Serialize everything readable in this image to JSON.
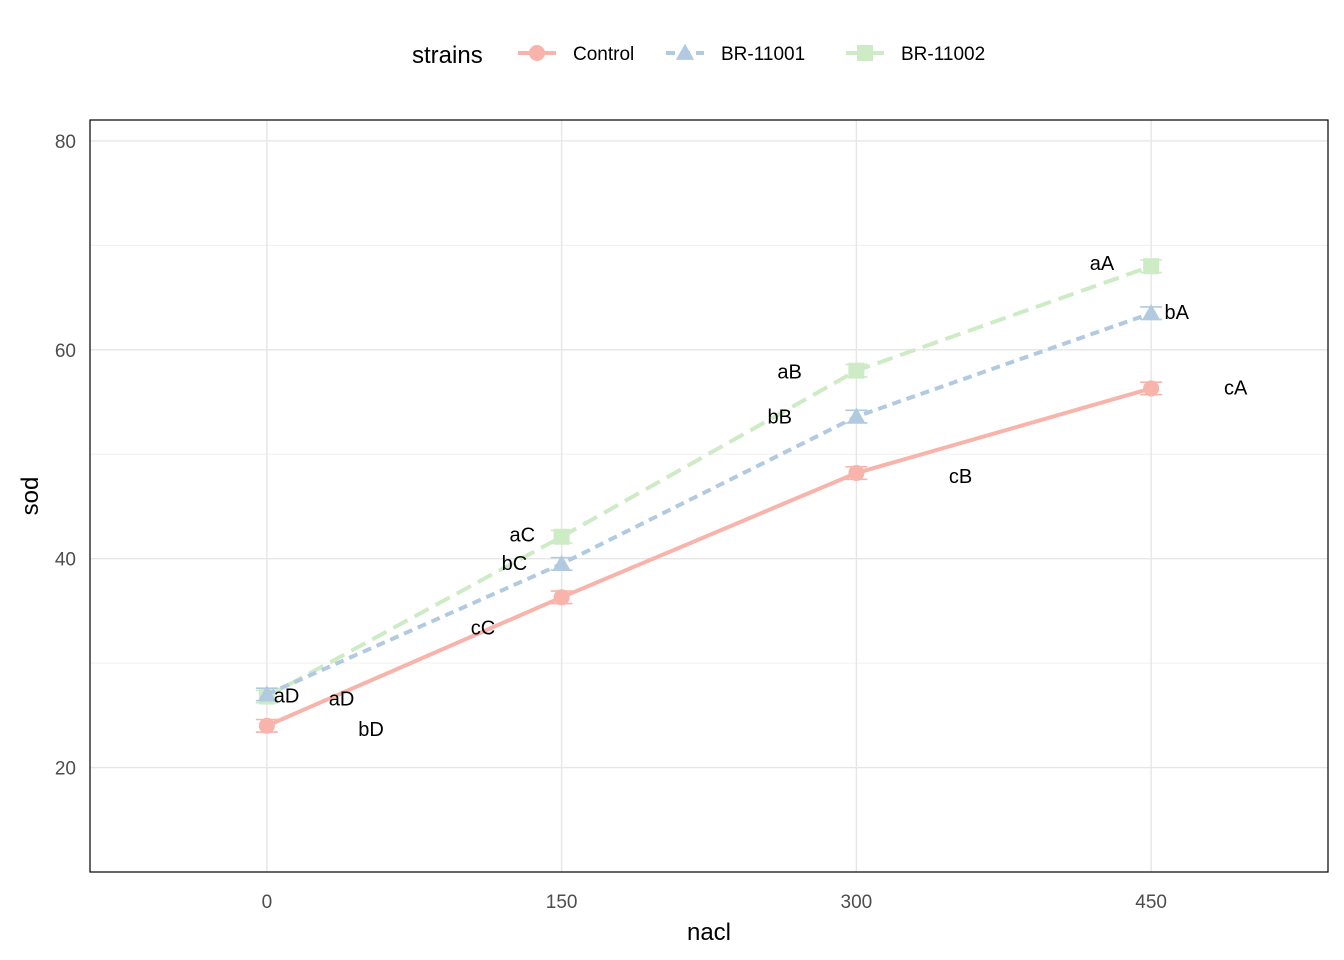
{
  "chart_data": {
    "type": "line",
    "xlabel": "nacl",
    "ylabel": "sod",
    "x": [
      0,
      150,
      300,
      450
    ],
    "x_ticks": [
      "0",
      "150",
      "300",
      "450"
    ],
    "y_ticks": [
      "20",
      "40",
      "60",
      "80"
    ],
    "xlim": [
      -90,
      540
    ],
    "ylim": [
      10,
      82
    ],
    "grid": true,
    "legend": {
      "title": "strains",
      "position": "top"
    },
    "series": [
      {
        "name": "Control",
        "color": "#f8b3aa",
        "marker": "circle",
        "dash": "solid",
        "values": [
          24.0,
          36.3,
          48.2,
          56.3
        ],
        "error": [
          0.6,
          0.6,
          0.6,
          0.6
        ],
        "labels": [
          {
            "text": "bD",
            "x": 53,
            "y": 23.7
          },
          {
            "text": "cC",
            "x": 110,
            "y": 33.4
          },
          {
            "text": "cB",
            "x": 353,
            "y": 47.9
          },
          {
            "text": "cA",
            "x": 493,
            "y": 56.4
          }
        ]
      },
      {
        "name": "BR-11001",
        "color": "#b1cae0",
        "marker": "triangle",
        "dash": "dotted",
        "values": [
          27.0,
          39.5,
          53.6,
          63.5
        ],
        "error": [
          0.6,
          0.6,
          0.6,
          0.6
        ],
        "labels": [
          {
            "text": "aD",
            "x": 38,
            "y": 26.6
          },
          {
            "text": "bC",
            "x": 126,
            "y": 39.6
          },
          {
            "text": "bB",
            "x": 261,
            "y": 53.6
          },
          {
            "text": "bA",
            "x": 463,
            "y": 63.6
          }
        ]
      },
      {
        "name": "BR-11002",
        "color": "#cdebc5",
        "marker": "square",
        "dash": "dashed",
        "values": [
          26.8,
          42.1,
          58.0,
          68.0
        ],
        "error": [
          0.6,
          0.6,
          0.6,
          0.6
        ],
        "labels": [
          {
            "text": "aD",
            "x": 10,
            "y": 26.9
          },
          {
            "text": "aC",
            "x": 130,
            "y": 42.3
          },
          {
            "text": "aB",
            "x": 266,
            "y": 57.9
          },
          {
            "text": "aA",
            "x": 425,
            "y": 68.3
          }
        ]
      }
    ]
  }
}
